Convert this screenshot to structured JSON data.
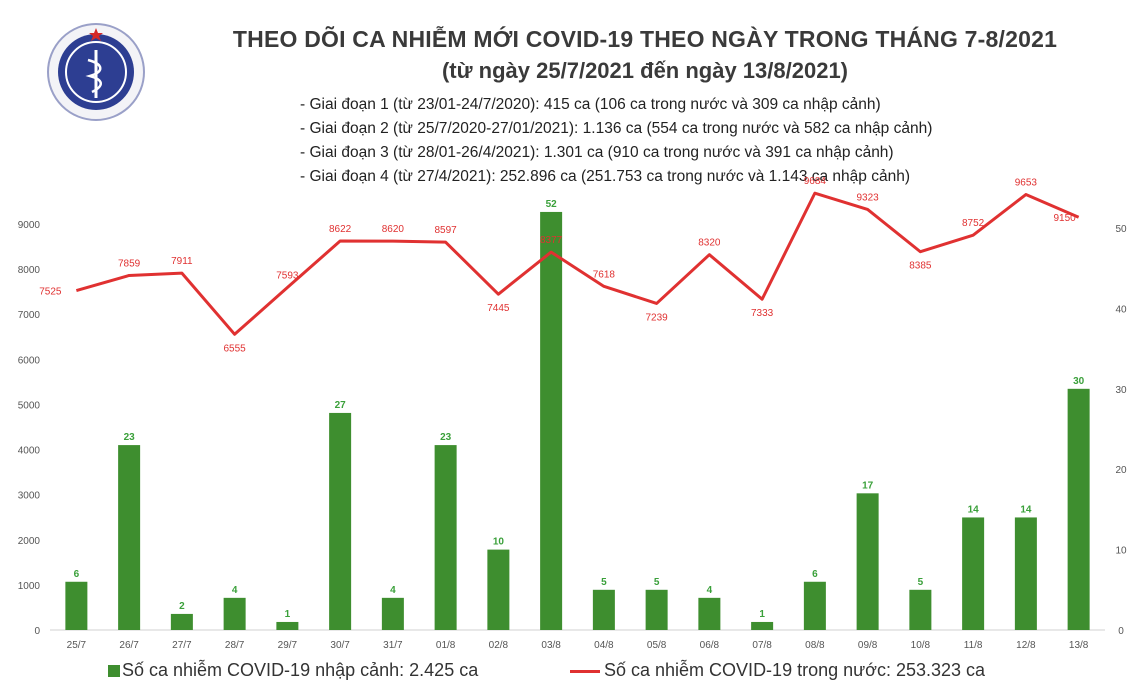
{
  "header": {
    "logo_text": "BỘ Y TẾ · MINISTRY OF HEALTH",
    "title": "THEO DÕI CA NHIỄM MỚI COVID-19 THEO NGÀY TRONG THÁNG 7-8/2021",
    "subtitle": "(từ ngày 25/7/2021 đến ngày 13/8/2021)",
    "phases": [
      "- Giai đoạn 1 (từ 23/01-24/7/2020): 415 ca (106 ca trong nước và 309 ca nhập cảnh)",
      "- Giai đoạn 2 (từ 25/7/2020-27/01/2021): 1.136 ca (554 ca trong nước và 582 ca nhập cảnh)",
      "- Giai đoạn 3 (từ 28/01-26/4/2021): 1.301 ca (910 ca trong nước và 391 ca nhập cảnh)",
      "- Giai đoạn 4 (từ 27/4/2021): 252.896 ca (251.753 ca trong nước và 1.143 ca nhập cảnh)"
    ]
  },
  "colors": {
    "bar": "#3e8e2f",
    "bar_label": "#3aa03a",
    "line": "#e03131",
    "line_label": "#e03131",
    "axis_text": "#555555",
    "title": "#3a3a3a"
  },
  "chart_data": {
    "type": "bar",
    "categories": [
      "25/7",
      "26/7",
      "27/7",
      "28/7",
      "29/7",
      "30/7",
      "31/7",
      "01/8",
      "02/8",
      "03/8",
      "04/8",
      "05/8",
      "06/8",
      "07/8",
      "08/8",
      "09/8",
      "10/8",
      "11/8",
      "12/8",
      "13/8"
    ],
    "series": [
      {
        "name": "Số ca nhiễm COVID-19 nhập cảnh: 2.425 ca",
        "kind": "bar",
        "axis": "right",
        "values": [
          6,
          23,
          2,
          4,
          1,
          27,
          4,
          23,
          10,
          52,
          5,
          5,
          4,
          1,
          6,
          17,
          5,
          14,
          14,
          30
        ]
      },
      {
        "name": "Số ca nhiễm COVID-19 trong nước: 253.323 ca",
        "kind": "line",
        "axis": "left",
        "values": [
          7525,
          7859,
          7911,
          6555,
          7593,
          8622,
          8620,
          8597,
          7445,
          8377,
          7618,
          7239,
          8320,
          7333,
          9684,
          9323,
          8385,
          8752,
          9653,
          9150
        ]
      }
    ],
    "y_left": {
      "ticks": [
        "0",
        "1000",
        "2000",
        "3000",
        "4000",
        "5000",
        "6000",
        "7000",
        "8000",
        "9000"
      ],
      "ylim": [
        0,
        9000
      ]
    },
    "y_right": {
      "ticks": [
        "0",
        "10",
        "20",
        "30",
        "40",
        "50"
      ],
      "ylim": [
        0,
        50.5
      ]
    },
    "grid": false,
    "legend_position": "bottom"
  }
}
